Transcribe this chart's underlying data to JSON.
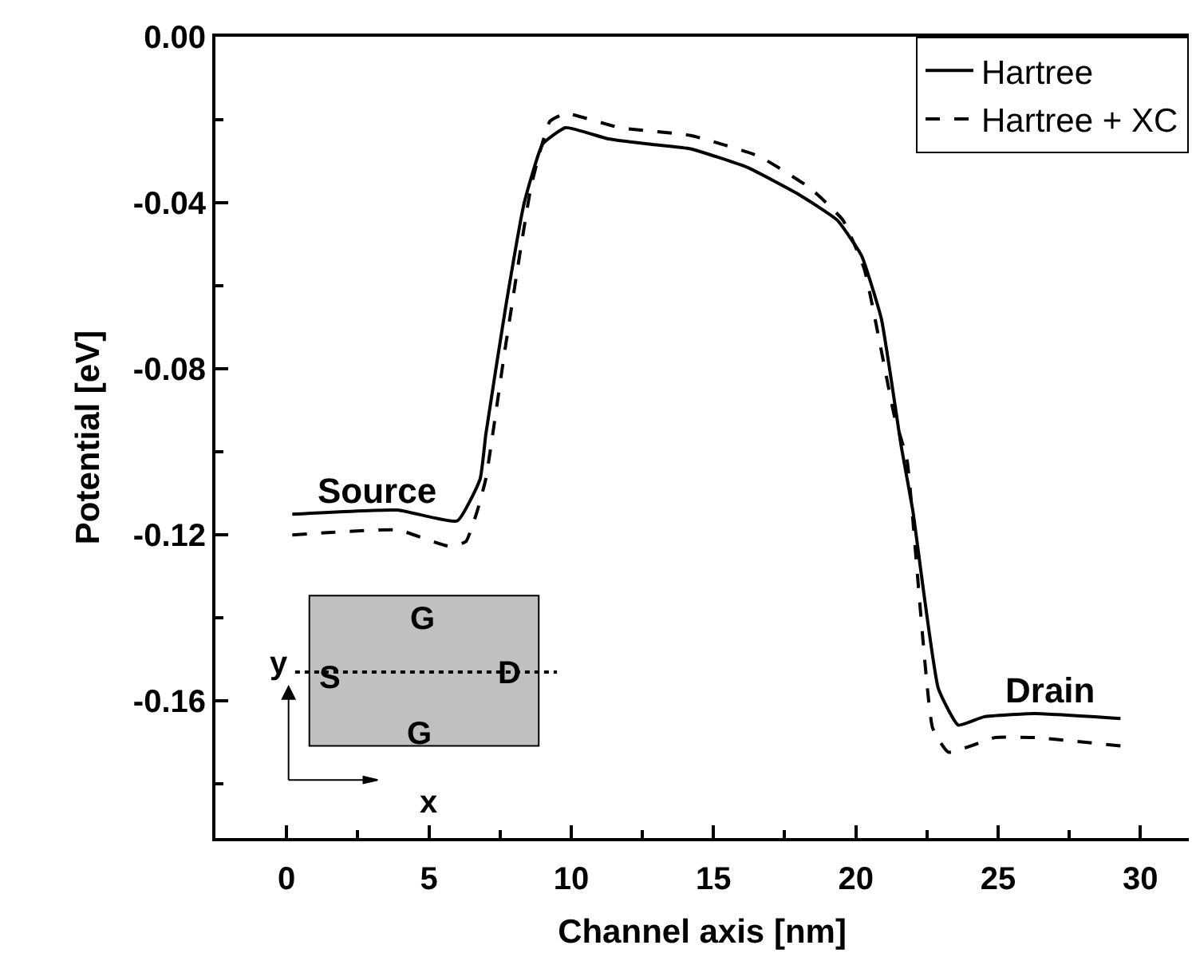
{
  "chart_data": {
    "type": "line",
    "xlabel": "Channel axis [nm]",
    "ylabel": "Potential [eV]",
    "xlim": [
      -2.5,
      31.7
    ],
    "ylim": [
      -0.193,
      0
    ],
    "xticks": [
      0,
      {
        "value": 2.5,
        "label": null
      },
      5,
      {
        "value": 7.5,
        "label": null
      },
      10,
      {
        "value": 12.5,
        "label": null
      },
      15,
      {
        "value": 17.5,
        "label": null
      },
      20,
      {
        "value": 22.5,
        "label": null
      },
      25,
      {
        "value": 27.5,
        "label": null
      },
      30
    ],
    "yticks": [
      {
        "value": 0,
        "label": "0.00"
      },
      {
        "value": -0.02,
        "label": null
      },
      {
        "value": -0.04,
        "label": "-0.04"
      },
      {
        "value": -0.06,
        "label": null
      },
      {
        "value": -0.08,
        "label": "-0.08"
      },
      {
        "value": -0.1,
        "label": null
      },
      {
        "value": -0.12,
        "label": "-0.12"
      },
      {
        "value": -0.14,
        "label": null
      },
      {
        "value": -0.16,
        "label": "-0.16"
      },
      {
        "value": -0.18,
        "label": null
      }
    ],
    "grid": false,
    "legend": "top right",
    "marker": "none",
    "series": [
      {
        "name": "Hartree",
        "color": "#000000",
        "line_style": "solid",
        "x": [
          0.2,
          3.9,
          6.0,
          6.8,
          7.0,
          7.7,
          8.35,
          9.0,
          9.8,
          11.3,
          12.8,
          14.2,
          16.2,
          18.0,
          19.35,
          20.2,
          20.9,
          21.6,
          22.0,
          22.9,
          23.6,
          24.5,
          26.3,
          29.3
        ],
        "values": [
          -0.115,
          -0.114,
          -0.1166,
          -0.1065,
          -0.0958,
          -0.065,
          -0.04,
          -0.0258,
          -0.0219,
          -0.0246,
          -0.0259,
          -0.027,
          -0.0315,
          -0.038,
          -0.0442,
          -0.0527,
          -0.068,
          -0.0988,
          -0.114,
          -0.157,
          -0.1658,
          -0.1638,
          -0.163,
          -0.1642
        ]
      },
      {
        "name": "Hartree + XC",
        "color": "#000000",
        "line_style": "dashed",
        "x": [
          0.2,
          3.9,
          5.7,
          6.3,
          6.7,
          7.0,
          7.7,
          8.6,
          9.25,
          9.8,
          11.7,
          14.2,
          16.6,
          18.4,
          19.55,
          20.3,
          21.35,
          21.8,
          22.7,
          23.25,
          24.9,
          26.3,
          29.3
        ],
        "values": [
          -0.12,
          -0.1188,
          -0.1227,
          -0.1216,
          -0.1142,
          -0.1065,
          -0.0742,
          -0.0358,
          -0.0204,
          -0.0185,
          -0.0219,
          -0.0238,
          -0.0288,
          -0.0365,
          -0.0442,
          -0.056,
          -0.0912,
          -0.102,
          -0.1665,
          -0.1723,
          -0.1688,
          -0.1688,
          -0.1708
        ]
      }
    ],
    "annotations": [
      {
        "text": "Source",
        "x": 3.2,
        "y": -0.115
      },
      {
        "text": "Drain",
        "x": 26.8,
        "y": -0.163
      },
      "G",
      "S",
      "D",
      "G",
      "y",
      "x"
    ]
  }
}
